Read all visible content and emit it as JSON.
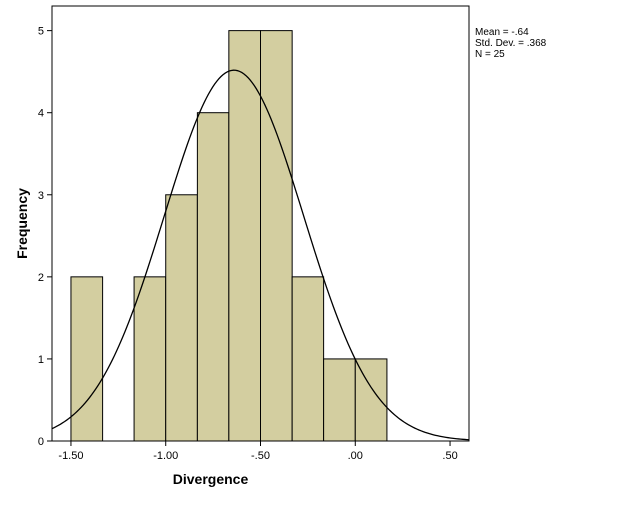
{
  "chart_data": {
    "type": "bar",
    "subtype": "histogram",
    "xlabel": "Divergence",
    "ylabel": "Frequency",
    "xlim": [
      -1.6,
      0.6
    ],
    "ylim": [
      0,
      5.3
    ],
    "x_ticks": [
      {
        "value": -1.5,
        "label": "-1.50"
      },
      {
        "value": -1.0,
        "label": "-1.00"
      },
      {
        "value": -0.5,
        "label": "-.50"
      },
      {
        "value": 0.0,
        "label": ".00"
      },
      {
        "value": 0.5,
        "label": ".50"
      }
    ],
    "y_ticks": [
      {
        "value": 0,
        "label": "0"
      },
      {
        "value": 1,
        "label": "1"
      },
      {
        "value": 2,
        "label": "2"
      },
      {
        "value": 3,
        "label": "3"
      },
      {
        "value": 4,
        "label": "4"
      },
      {
        "value": 5,
        "label": "5"
      }
    ],
    "bins": [
      {
        "start": -1.5,
        "end": -1.333,
        "count": 2
      },
      {
        "start": -1.333,
        "end": -1.167,
        "count": 0
      },
      {
        "start": -1.167,
        "end": -1.0,
        "count": 2
      },
      {
        "start": -1.0,
        "end": -0.833,
        "count": 3
      },
      {
        "start": -0.833,
        "end": -0.667,
        "count": 4
      },
      {
        "start": -0.667,
        "end": -0.5,
        "count": 5
      },
      {
        "start": -0.5,
        "end": -0.333,
        "count": 5
      },
      {
        "start": -0.333,
        "end": -0.167,
        "count": 2
      },
      {
        "start": -0.167,
        "end": 0.0,
        "count": 1
      },
      {
        "start": 0.0,
        "end": 0.167,
        "count": 1
      }
    ],
    "normal_curve": {
      "mean": -0.64,
      "sd": 0.368,
      "n": 25,
      "bin_width": 0.1667
    },
    "stats_text": [
      "Mean = -.64",
      "Std. Dev. = .368",
      "N = 25"
    ],
    "bar_color": "#d3cea0",
    "bar_edge_color": "#000000",
    "curve_color": "#000000",
    "grid": false,
    "legend": "top-right"
  }
}
